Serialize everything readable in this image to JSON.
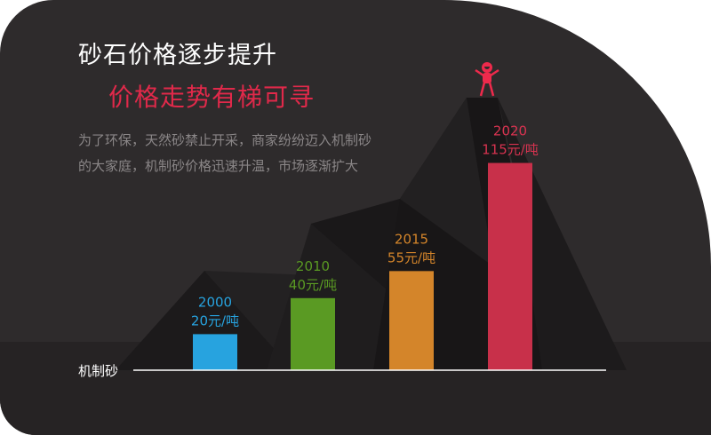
{
  "header": {
    "title": "砂石价格逐步提升",
    "subtitle": "价格走势有梯可寻",
    "description": "为了环保，天然砂禁止开采，商家纷纷迈入机制砂的大家庭，机制砂价格迅速升温，市场逐渐扩大"
  },
  "mascot_icon": "cheering-person-icon",
  "chart_data": {
    "type": "bar",
    "categories": [
      "2000",
      "2010",
      "2015",
      "2020"
    ],
    "values": [
      20,
      40,
      55,
      115
    ],
    "unit": "元/吨",
    "data_labels": [
      "20元/吨",
      "40元/吨",
      "55元/吨",
      "115元/吨"
    ],
    "category_label": "机制砂",
    "colors": [
      "#27a3df",
      "#5a9a23",
      "#d4852a",
      "#c8304a"
    ],
    "label_colors": [
      "#27a3df",
      "#5a9a23",
      "#d4852a",
      "#d83350"
    ],
    "grid": false
  }
}
